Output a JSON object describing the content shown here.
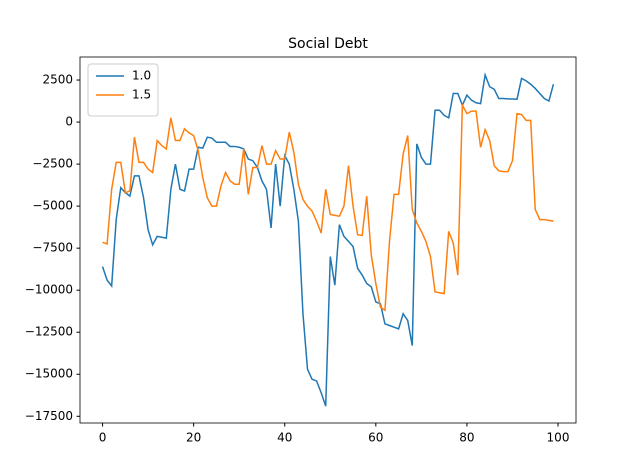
{
  "chart_data": {
    "type": "line",
    "title": "Social Debt",
    "x": [
      0,
      1,
      2,
      3,
      4,
      5,
      6,
      7,
      8,
      9,
      10,
      11,
      12,
      13,
      14,
      15,
      16,
      17,
      18,
      19,
      20,
      21,
      22,
      23,
      24,
      25,
      26,
      27,
      28,
      29,
      30,
      31,
      32,
      33,
      34,
      35,
      36,
      37,
      38,
      39,
      40,
      41,
      42,
      43,
      44,
      45,
      46,
      47,
      48,
      49,
      50,
      51,
      52,
      53,
      54,
      55,
      56,
      57,
      58,
      59,
      60,
      61,
      62,
      63,
      64,
      65,
      66,
      67,
      68,
      69,
      70,
      71,
      72,
      73,
      74,
      75,
      76,
      77,
      78,
      79,
      80,
      81,
      82,
      83,
      84,
      85,
      86,
      87,
      88,
      89,
      90,
      91,
      92,
      93,
      94,
      95,
      96,
      97,
      98,
      99
    ],
    "series": [
      {
        "name": "1.0",
        "color": "#1f77b4",
        "values": [
          -8600,
          -9400,
          -9750,
          -5800,
          -3900,
          -4200,
          -4400,
          -3200,
          -3200,
          -4500,
          -6400,
          -7300,
          -6800,
          -6850,
          -6900,
          -4000,
          -2500,
          -4000,
          -4100,
          -2800,
          -2800,
          -1500,
          -1550,
          -900,
          -950,
          -1200,
          -1200,
          -1200,
          -1450,
          -1450,
          -1500,
          -1600,
          -2200,
          -2300,
          -2700,
          -3500,
          -4000,
          -6300,
          -2500,
          -5000,
          -2000,
          -2500,
          -4000,
          -5900,
          -11400,
          -14700,
          -15300,
          -15400,
          -16100,
          -16900,
          -8000,
          -9700,
          -6100,
          -6800,
          -7100,
          -7400,
          -8700,
          -9100,
          -9600,
          -9800,
          -10700,
          -10800,
          -12000,
          -12100,
          -12200,
          -12300,
          -11400,
          -11800,
          -13300,
          -1300,
          -2100,
          -2500,
          -2500,
          700,
          700,
          400,
          250,
          1700,
          1700,
          1000,
          1600,
          1300,
          1150,
          1100,
          2800,
          2100,
          1950,
          1400,
          1400,
          1380,
          1370,
          1360,
          2600,
          2450,
          2250,
          2000,
          1700,
          1400,
          1250,
          2250
        ]
      },
      {
        "name": "1.5",
        "color": "#ff7f0e",
        "values": [
          -7150,
          -7250,
          -4000,
          -2400,
          -2400,
          -4200,
          -4100,
          -900,
          -2400,
          -2400,
          -2800,
          -3000,
          -1100,
          -1400,
          -1600,
          250,
          -1100,
          -1100,
          -400,
          -650,
          -800,
          -1700,
          -3300,
          -4500,
          -5000,
          -5000,
          -3800,
          -3000,
          -3500,
          -3700,
          -3700,
          -1600,
          -4300,
          -2700,
          -2700,
          -1400,
          -2500,
          -2500,
          -1700,
          -2200,
          -2200,
          -600,
          -1800,
          -3700,
          -4600,
          -5000,
          -5300,
          -5900,
          -6600,
          -4000,
          -5500,
          -5550,
          -5600,
          -5000,
          -2600,
          -5000,
          -6700,
          -6750,
          -4400,
          -7900,
          -9600,
          -11000,
          -11200,
          -7100,
          -4300,
          -4300,
          -1900,
          -800,
          -5200,
          -6000,
          -6500,
          -7100,
          -8000,
          -10100,
          -10150,
          -10200,
          -6500,
          -7200,
          -9100,
          1000,
          500,
          650,
          650,
          -1500,
          -450,
          -1100,
          -2600,
          -2900,
          -2950,
          -2950,
          -2300,
          500,
          450,
          100,
          100,
          -5200,
          -5800,
          -5800,
          -5850,
          -5900
        ]
      }
    ],
    "xlim": [
      -4.95,
      103.95
    ],
    "xticks": [
      0,
      20,
      40,
      60,
      80,
      100
    ],
    "ylim": [
      -17900,
      3870
    ],
    "yticks": [
      {
        "value": -17500,
        "label": "−17500"
      },
      {
        "value": -15000,
        "label": "−15000"
      },
      {
        "value": -12500,
        "label": "−12500"
      },
      {
        "value": -10000,
        "label": "−10000"
      },
      {
        "value": -7500,
        "label": "−7500"
      },
      {
        "value": -5000,
        "label": "−5000"
      },
      {
        "value": -2500,
        "label": "−2500"
      },
      0,
      2500
    ],
    "legend": "upper left"
  }
}
